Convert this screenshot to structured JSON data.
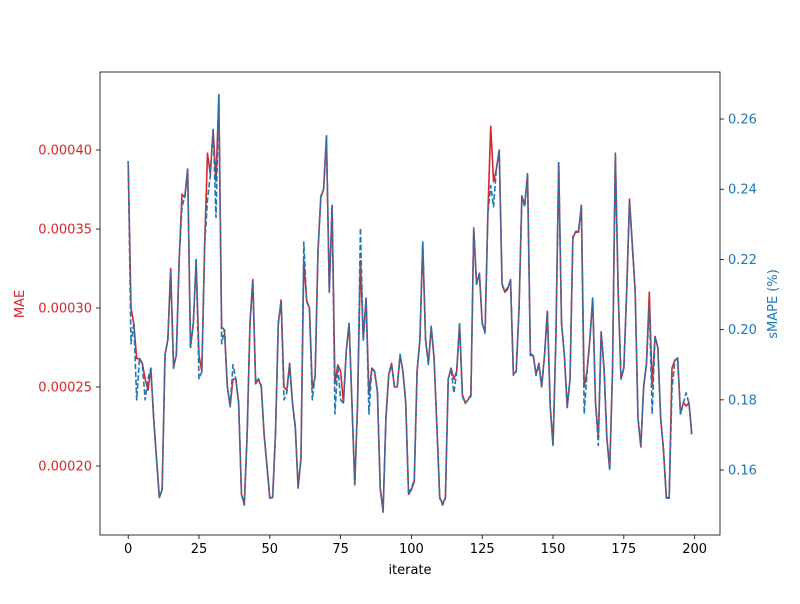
{
  "chart_data": {
    "type": "line",
    "xlabel": "iterate",
    "ylabel": "MAE",
    "y2label": "sMAPE (%)",
    "x": [
      0,
      1,
      2,
      3,
      4,
      5,
      6,
      7,
      8,
      9,
      10,
      11,
      12,
      13,
      14,
      15,
      16,
      17,
      18,
      19,
      20,
      21,
      22,
      23,
      24,
      25,
      26,
      27,
      28,
      29,
      30,
      31,
      32,
      33,
      34,
      35,
      36,
      37,
      38,
      39,
      40,
      41,
      42,
      43,
      44,
      45,
      46,
      47,
      48,
      49,
      50,
      51,
      52,
      53,
      54,
      55,
      56,
      57,
      58,
      59,
      60,
      61,
      62,
      63,
      64,
      65,
      66,
      67,
      68,
      69,
      70,
      71,
      72,
      73,
      74,
      75,
      76,
      77,
      78,
      79,
      80,
      81,
      82,
      83,
      84,
      85,
      86,
      87,
      88,
      89,
      90,
      91,
      92,
      93,
      94,
      95,
      96,
      97,
      98,
      99,
      100,
      101,
      102,
      103,
      104,
      105,
      106,
      107,
      108,
      109,
      110,
      111,
      112,
      113,
      114,
      115,
      116,
      117,
      118,
      119,
      120,
      121,
      122,
      123,
      124,
      125,
      126,
      127,
      128,
      129,
      130,
      131,
      132,
      133,
      134,
      135,
      136,
      137,
      138,
      139,
      140,
      141,
      142,
      143,
      144,
      145,
      146,
      147,
      148,
      149,
      150,
      151,
      152,
      153,
      154,
      155,
      156,
      157,
      158,
      159,
      160,
      161,
      162,
      163,
      164,
      165,
      166,
      167,
      168,
      169,
      170,
      171,
      172,
      173,
      174,
      175,
      176,
      177,
      178,
      179,
      180,
      181,
      182,
      183,
      184,
      185,
      186,
      187,
      188,
      189,
      190,
      191,
      192,
      193,
      194,
      195,
      196,
      197,
      198,
      199
    ],
    "series": [
      {
        "axis": "y",
        "color": "#d62728",
        "linestyle": "solid",
        "values": [
          0.000393,
          0.0003,
          0.00029,
          0.000268,
          0.000268,
          0.000265,
          0.000255,
          0.000248,
          0.000262,
          0.00023,
          0.000205,
          0.00018,
          0.000185,
          0.00027,
          0.00028,
          0.000325,
          0.000263,
          0.00027,
          0.00033,
          0.000372,
          0.00037,
          0.000388,
          0.000275,
          0.00029,
          0.00033,
          0.00027,
          0.00026,
          0.00034,
          0.000398,
          0.000385,
          0.000413,
          0.00038,
          0.000435,
          0.000288,
          0.000286,
          0.00025,
          0.000238,
          0.000255,
          0.000255,
          0.00024,
          0.000182,
          0.000176,
          0.00022,
          0.00029,
          0.000318,
          0.000252,
          0.000255,
          0.00025,
          0.00022,
          0.0002,
          0.00018,
          0.00018,
          0.00022,
          0.00029,
          0.000305,
          0.00025,
          0.000248,
          0.000265,
          0.00024,
          0.000225,
          0.000186,
          0.000205,
          0.00033,
          0.000305,
          0.0003,
          0.00025,
          0.000256,
          0.000335,
          0.00037,
          0.000375,
          0.000409,
          0.00031,
          0.000365,
          0.000252,
          0.000264,
          0.00026,
          0.00024,
          0.000273,
          0.00029,
          0.00024,
          0.000188,
          0.00024,
          0.00033,
          0.00028,
          0.000306,
          0.000245,
          0.000262,
          0.00026,
          0.000247,
          0.000185,
          0.000172,
          0.00023,
          0.000258,
          0.000265,
          0.00025,
          0.00025,
          0.00027,
          0.00026,
          0.00024,
          0.000182,
          0.000185,
          0.00019,
          0.00026,
          0.00028,
          0.000341,
          0.00028,
          0.000265,
          0.000288,
          0.000268,
          0.000225,
          0.00018,
          0.000176,
          0.00018,
          0.000255,
          0.000262,
          0.000255,
          0.00026,
          0.00029,
          0.000245,
          0.00024,
          0.000242,
          0.000245,
          0.00035,
          0.000315,
          0.000322,
          0.00029,
          0.000285,
          0.00036,
          0.000415,
          0.00038,
          0.000388,
          0.0004,
          0.000315,
          0.00031,
          0.000312,
          0.000318,
          0.000258,
          0.00026,
          0.0003,
          0.000371,
          0.000365,
          0.000385,
          0.00027,
          0.00027,
          0.000258,
          0.000265,
          0.00025,
          0.00027,
          0.000298,
          0.000238,
          0.000213,
          0.00028,
          0.000392,
          0.00029,
          0.00027,
          0.000237,
          0.000255,
          0.000345,
          0.000348,
          0.000348,
          0.000365,
          0.00025,
          0.00026,
          0.00028,
          0.000306,
          0.00024,
          0.000218,
          0.000285,
          0.000262,
          0.000218,
          0.000198,
          0.00026,
          0.000398,
          0.00031,
          0.000255,
          0.000262,
          0.00031,
          0.000369,
          0.00034,
          0.00031,
          0.00023,
          0.000212,
          0.00025,
          0.000265,
          0.00031,
          0.00025,
          0.000282,
          0.000275,
          0.00023,
          0.00021,
          0.00018,
          0.00018,
          0.000262,
          0.000267,
          0.000268,
          0.000233,
          0.00024,
          0.000238,
          0.00024,
          0.00022
        ]
      },
      {
        "axis": "y2",
        "color": "#1f77b4",
        "linestyle": "dashed",
        "values": [
          0.248,
          0.196,
          0.202,
          0.18,
          0.192,
          0.19,
          0.18,
          0.186,
          0.189,
          0.175,
          0.163,
          0.152,
          0.155,
          0.193,
          0.197,
          0.217,
          0.189,
          0.193,
          0.22,
          0.235,
          0.238,
          0.246,
          0.195,
          0.202,
          0.22,
          0.186,
          0.188,
          0.224,
          0.237,
          0.244,
          0.257,
          0.232,
          0.267,
          0.196,
          0.2,
          0.184,
          0.178,
          0.19,
          0.186,
          0.179,
          0.153,
          0.15,
          0.17,
          0.202,
          0.214,
          0.185,
          0.186,
          0.184,
          0.17,
          0.161,
          0.152,
          0.152,
          0.17,
          0.202,
          0.208,
          0.18,
          0.182,
          0.19,
          0.179,
          0.172,
          0.155,
          0.163,
          0.225,
          0.208,
          0.206,
          0.18,
          0.187,
          0.222,
          0.238,
          0.24,
          0.255,
          0.211,
          0.235,
          0.176,
          0.19,
          0.18,
          0.179,
          0.194,
          0.202,
          0.179,
          0.156,
          0.179,
          0.229,
          0.197,
          0.209,
          0.176,
          0.189,
          0.188,
          0.182,
          0.155,
          0.148,
          0.175,
          0.187,
          0.19,
          0.184,
          0.184,
          0.193,
          0.188,
          0.179,
          0.153,
          0.155,
          0.157,
          0.188,
          0.197,
          0.225,
          0.197,
          0.19,
          0.201,
          0.192,
          0.172,
          0.152,
          0.15,
          0.152,
          0.186,
          0.189,
          0.182,
          0.188,
          0.202,
          0.181,
          0.179,
          0.18,
          0.181,
          0.229,
          0.213,
          0.216,
          0.202,
          0.199,
          0.233,
          0.241,
          0.235,
          0.246,
          0.251,
          0.213,
          0.211,
          0.212,
          0.214,
          0.187,
          0.188,
          0.206,
          0.238,
          0.235,
          0.244,
          0.193,
          0.193,
          0.187,
          0.19,
          0.184,
          0.193,
          0.205,
          0.178,
          0.167,
          0.197,
          0.248,
          0.202,
          0.193,
          0.178,
          0.186,
          0.226,
          0.228,
          0.228,
          0.235,
          0.176,
          0.188,
          0.197,
          0.209,
          0.179,
          0.167,
          0.199,
          0.189,
          0.169,
          0.16,
          0.188,
          0.25,
          0.211,
          0.186,
          0.189,
          0.211,
          0.236,
          0.224,
          0.211,
          0.175,
          0.167,
          0.184,
          0.19,
          0.207,
          0.176,
          0.198,
          0.195,
          0.175,
          0.166,
          0.152,
          0.152,
          0.183,
          0.191,
          0.192,
          0.176,
          0.179,
          0.182,
          0.179,
          0.17
        ]
      }
    ],
    "xlim": [
      -9.95,
      208.95
    ],
    "xticks": [
      0,
      25,
      50,
      75,
      100,
      125,
      150,
      175,
      200
    ],
    "ylim": [
      0.0001563,
      0.0004494
    ],
    "yticks": [
      {
        "value": 0.0002,
        "label": "0.00020"
      },
      {
        "value": 0.00025,
        "label": "0.00025"
      },
      {
        "value": 0.0003,
        "label": "0.00030"
      },
      {
        "value": 0.00035,
        "label": "0.00035"
      },
      {
        "value": 0.0004,
        "label": "0.00040"
      }
    ],
    "y2lim": [
      0.1415,
      0.2734
    ],
    "y2ticks": [
      0.16,
      0.18,
      {
        "value": 0.2,
        "label": "0.20"
      },
      0.22,
      0.24,
      0.26
    ],
    "grid": false
  }
}
